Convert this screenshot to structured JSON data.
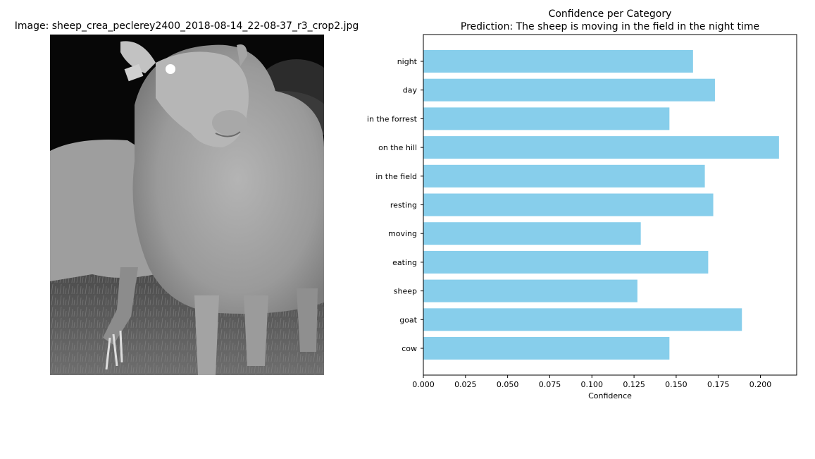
{
  "image_panel": {
    "title": "Image: sheep_crea_peclerey2400_2018-08-14_22-08-37_r3_crop2.jpg",
    "subject": "grayscale night camera-trap photo of a sheep"
  },
  "chart_data": {
    "type": "bar",
    "orientation": "horizontal",
    "title": "Confidence per Category",
    "subtitle": "Prediction: The sheep is moving in the field in the night time",
    "xlabel": "Confidence",
    "ylabel": "",
    "categories": [
      "cow",
      "goat",
      "sheep",
      "eating",
      "moving",
      "resting",
      "in the field",
      "on the hill",
      "in the forrest",
      "day",
      "night"
    ],
    "values": [
      0.146,
      0.189,
      0.127,
      0.169,
      0.129,
      0.172,
      0.167,
      0.211,
      0.146,
      0.173,
      0.16
    ],
    "xlim": [
      0,
      0.2215
    ],
    "xticks": [
      "0.000",
      "0.025",
      "0.050",
      "0.075",
      "0.100",
      "0.125",
      "0.150",
      "0.175",
      "0.200"
    ],
    "bar_color": "#87ceeb",
    "grid": false,
    "legend": "none"
  }
}
